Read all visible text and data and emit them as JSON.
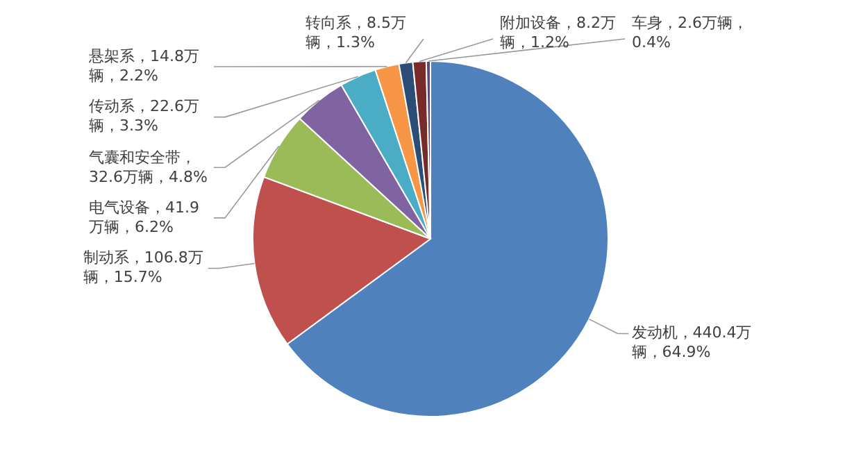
{
  "chart_data": {
    "type": "pie",
    "categories": [
      "发动机",
      "制动系",
      "电气设备",
      "气囊和安全带",
      "传动系",
      "悬架系",
      "转向系",
      "附加设备",
      "车身"
    ],
    "values": [
      440.4,
      106.8,
      41.9,
      32.6,
      22.6,
      14.8,
      8.5,
      8.2,
      2.6
    ],
    "colors": [
      "#4f81bd",
      "#c0504d",
      "#9bbb59",
      "#8064a2",
      "#4bacc6",
      "#f79646",
      "#2c4d75",
      "#772c2a",
      "#5f4a7a"
    ],
    "value_labels": [
      "，440.4万辆，64.9%",
      "，106.8万辆，15.7%",
      "，41.9万辆，6.2%",
      "，32.6万辆，4.8%",
      "，22.6万辆，3.3%",
      "，14.8万辆，2.2%",
      "，8.5万辆，1.3%",
      "，8.2万辆，1.2%",
      "，2.6万辆，0.4%"
    ]
  }
}
